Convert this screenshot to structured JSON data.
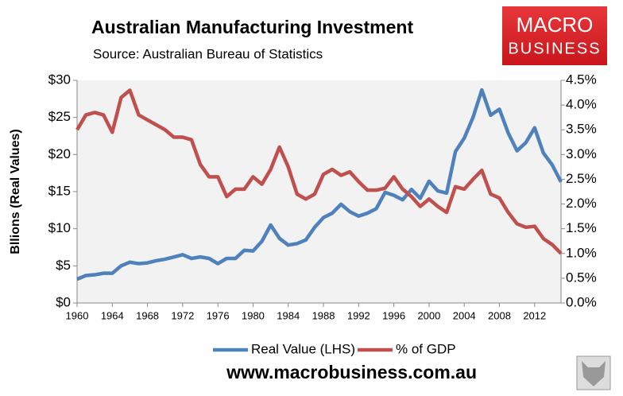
{
  "chart_data": {
    "type": "line",
    "title": "Australian Manufacturing Investment",
    "subtitle": "Source: Australian Bureau of Statistics",
    "y_label": "Bllions (Real Values)",
    "x": [
      1960,
      1961,
      1962,
      1963,
      1964,
      1965,
      1966,
      1967,
      1968,
      1969,
      1970,
      1971,
      1972,
      1973,
      1974,
      1975,
      1976,
      1977,
      1978,
      1979,
      1980,
      1981,
      1982,
      1983,
      1984,
      1985,
      1986,
      1987,
      1988,
      1989,
      1990,
      1991,
      1992,
      1993,
      1994,
      1995,
      1996,
      1997,
      1998,
      1999,
      2000,
      2001,
      2002,
      2003,
      2004,
      2005,
      2006,
      2007,
      2008,
      2009,
      2010,
      2011,
      2012,
      2013,
      2014,
      2015
    ],
    "xlim": [
      1960,
      2015
    ],
    "xticks": [
      1960,
      1964,
      1968,
      1972,
      1976,
      1980,
      1984,
      1988,
      1992,
      1996,
      2000,
      2004,
      2008,
      2012
    ],
    "ylim": [
      0,
      30
    ],
    "yticks": [
      {
        "value": 0,
        "label": "$0"
      },
      {
        "value": 5,
        "label": "$5"
      },
      {
        "value": 10,
        "label": "$10"
      },
      {
        "value": 15,
        "label": "$15"
      },
      {
        "value": 20,
        "label": "$20"
      },
      {
        "value": 25,
        "label": "$25"
      },
      {
        "value": 30,
        "label": "$30"
      }
    ],
    "y2lim": [
      0,
      4.5
    ],
    "y2ticks": [
      {
        "value": 0,
        "label": "0.0%"
      },
      {
        "value": 0.5,
        "label": "0.5%"
      },
      {
        "value": 1,
        "label": "1.0%"
      },
      {
        "value": 1.5,
        "label": "1.5%"
      },
      {
        "value": 2,
        "label": "2.0%"
      },
      {
        "value": 2.5,
        "label": "2.5%"
      },
      {
        "value": 3,
        "label": "3.0%"
      },
      {
        "value": 3.5,
        "label": "3.5%"
      },
      {
        "value": 4,
        "label": "4.0%"
      },
      {
        "value": 4.5,
        "label": "4.5%"
      }
    ],
    "grid": false,
    "legend": "bottom",
    "series": [
      {
        "name": "Real Value (LHS)",
        "color": "#4f81bd",
        "values": [
          3.2,
          3.7,
          3.8,
          4.0,
          4.0,
          5.0,
          5.5,
          5.3,
          5.4,
          5.7,
          5.9,
          6.2,
          6.5,
          6.0,
          6.2,
          6.0,
          5.3,
          6.0,
          6.0,
          7.1,
          7.0,
          8.3,
          10.5,
          8.7,
          7.8,
          8.0,
          8.5,
          10.2,
          11.5,
          12.1,
          13.3,
          12.3,
          11.7,
          12.1,
          12.7,
          14.9,
          14.5,
          13.9,
          15.3,
          14.1,
          16.4,
          15.1,
          14.8,
          20.4,
          22.2,
          25.0,
          28.7,
          25.3,
          26.1,
          22.9,
          20.5,
          21.6,
          23.6,
          20.2,
          18.6,
          16.3
        ]
      },
      {
        "name": "% of GDP",
        "color": "#c0504d",
        "axis": "y2",
        "values": [
          3.5,
          3.8,
          3.85,
          3.8,
          3.45,
          4.15,
          4.3,
          3.8,
          3.7,
          3.6,
          3.5,
          3.35,
          3.35,
          3.3,
          2.8,
          2.55,
          2.55,
          2.15,
          2.3,
          2.3,
          2.55,
          2.4,
          2.7,
          3.15,
          2.75,
          2.2,
          2.1,
          2.2,
          2.6,
          2.7,
          2.58,
          2.65,
          2.45,
          2.28,
          2.28,
          2.32,
          2.55,
          2.3,
          2.15,
          1.95,
          2.1,
          1.95,
          1.83,
          2.35,
          2.3,
          2.5,
          2.68,
          2.2,
          2.12,
          1.83,
          1.6,
          1.53,
          1.55,
          1.3,
          1.18,
          1.0
        ]
      }
    ]
  },
  "logo": {
    "line1": "MACRO",
    "line2": "BUSINESS"
  },
  "footer": "www.macrobusiness.com.au"
}
